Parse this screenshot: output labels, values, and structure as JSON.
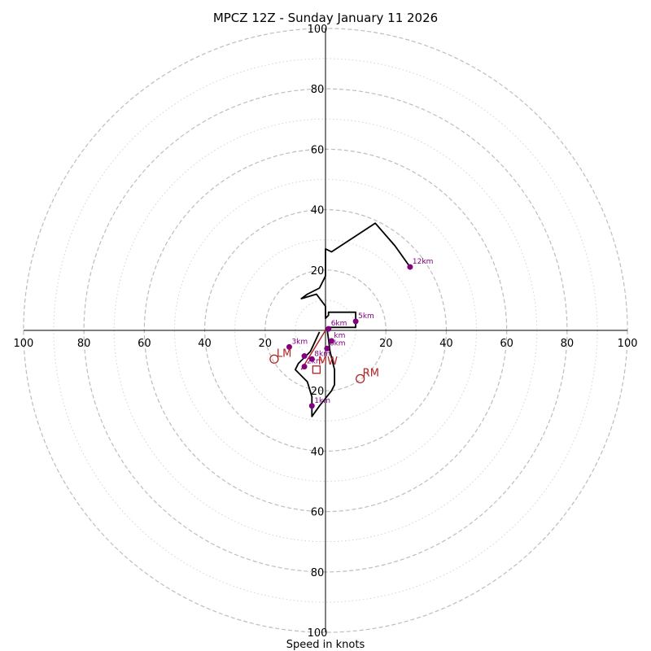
{
  "chart_data": {
    "type": "hodograph",
    "title": "MPCZ 12Z - Sunday January 11 2026",
    "xlabel": "Speed in knots",
    "max_speed": 100,
    "solid_rings": [
      20,
      40,
      60,
      80,
      100
    ],
    "dotted_rings": [
      10,
      30,
      50,
      70,
      90
    ],
    "x_ticks": [
      "100",
      "80",
      "60",
      "40",
      "20",
      "20",
      "40",
      "60",
      "80",
      "100"
    ],
    "y_ticks": [
      "100",
      "80",
      "60",
      "40",
      "20",
      "20",
      "40",
      "60",
      "80",
      "100"
    ],
    "trace": [
      [
        -2,
        -0.5
      ],
      [
        -5,
        -7
      ],
      [
        -9,
        -11
      ],
      [
        -10,
        -13
      ],
      [
        -8,
        -15
      ],
      [
        -6,
        -17
      ],
      [
        -4.5,
        -22
      ],
      [
        -4.5,
        -28.5
      ],
      [
        -2,
        -25
      ],
      [
        2,
        -20
      ],
      [
        3,
        -18
      ],
      [
        3,
        -13
      ],
      [
        2,
        -9
      ],
      [
        1.5,
        -7
      ],
      [
        1,
        -3
      ],
      [
        0.5,
        0.5
      ],
      [
        1,
        1
      ],
      [
        10,
        1
      ],
      [
        10,
        4
      ],
      [
        10,
        6
      ],
      [
        8.5,
        6
      ],
      [
        5.5,
        6
      ],
      [
        1,
        6
      ],
      [
        1,
        5
      ],
      [
        0,
        4
      ],
      [
        0,
        8
      ],
      [
        -3,
        12
      ],
      [
        -8,
        10.5
      ],
      [
        -6,
        12
      ],
      [
        -2,
        14
      ],
      [
        0,
        18
      ],
      [
        0,
        27
      ],
      [
        2,
        26
      ],
      [
        16.5,
        35.5
      ],
      [
        23,
        28
      ],
      [
        28,
        21
      ]
    ],
    "km_markers": [
      {
        "label": "1km",
        "u": -4.5,
        "v": -25
      },
      {
        "label": "3km",
        "u": -12,
        "v": -5.5
      },
      {
        "label": "5km",
        "u": 10,
        "v": 3
      },
      {
        "label": "6km",
        "u": 1,
        "v": 0.5
      },
      {
        "label": "8km",
        "u": -4.5,
        "v": -9.5
      },
      {
        "label": "km",
        "u": 2,
        "v": -3.5
      },
      {
        "label": "2km",
        "u": -7,
        "v": -12
      },
      {
        "label": "6km",
        "u": 0.5,
        "v": -6
      },
      {
        "label": "12km",
        "u": 28,
        "v": 21
      }
    ],
    "unlabeled_markers": [
      {
        "u": -7,
        "v": -8.5
      }
    ],
    "km_label_texts": [
      "1km",
      "3km",
      "5km",
      "6km",
      "8km",
      "km",
      "2km",
      "6km",
      "12km"
    ],
    "motion_markers": [
      {
        "label": "LM",
        "u": -17,
        "v": -9.5
      },
      {
        "label": "RM",
        "u": 11.5,
        "v": -16
      },
      {
        "label": "MW",
        "u": -3,
        "v": -13
      }
    ],
    "shear_vector": [
      [
        -8,
        -13
      ],
      [
        0,
        0
      ]
    ]
  }
}
